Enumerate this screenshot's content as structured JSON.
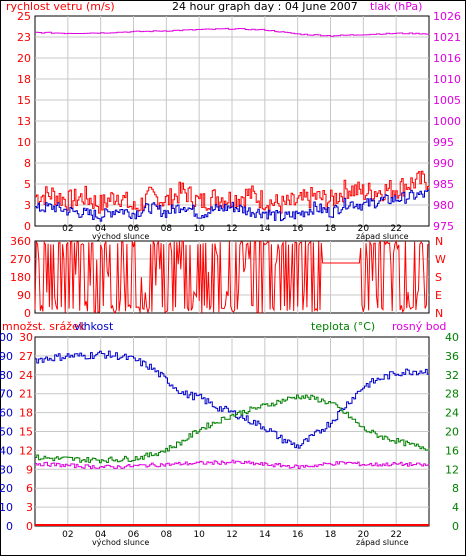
{
  "header": {
    "wind_label": "rychlost vetru (m/s)",
    "title": "24 hour graph day : 04 June 2007",
    "pressure_label": "tlak (hPa)"
  },
  "footer_labels": {
    "sunrise": "východ slunce",
    "sunset": "západ slunce"
  },
  "bottom_header": {
    "rain_label": "množst. srážek",
    "humidity_label": "vlhkost",
    "temp_label": "teplota (°C)",
    "dew_label": "rosný bod"
  },
  "colors": {
    "wind_gust": "#ff0000",
    "wind_avg": "#0000cc",
    "pressure": "#e000e0",
    "direction": "#ff0000",
    "humidity": "#0000cc",
    "temperature": "#008000",
    "dewpoint": "#e000e0",
    "rain": "#ff0000",
    "grid": "#c8c8c8"
  },
  "chart_data": [
    {
      "type": "line",
      "title": "24 hour graph day : 04 June 2007",
      "ylabel": "rychlost vetru (m/s)",
      "y2label": "tlak (hPa)",
      "xlim": [
        0,
        24
      ],
      "ylim": [
        0,
        25
      ],
      "y2lim": [
        975,
        1026
      ],
      "x_ticks": [
        "02",
        "04",
        "06",
        "08",
        "10",
        "12",
        "14",
        "16",
        "18",
        "20",
        "22"
      ],
      "y_ticks": [
        "25",
        "23",
        "20",
        "18",
        "15",
        "13",
        "10",
        "8",
        "5",
        "3",
        "0"
      ],
      "y2_ticks": [
        "1026",
        "1021",
        "1016",
        "1010",
        "1005",
        "1000",
        "995",
        "990",
        "985",
        "980",
        "975"
      ],
      "series": [
        {
          "key": "gust",
          "x": [
            0,
            1,
            2,
            3,
            4,
            5,
            6,
            7,
            8,
            9,
            10,
            11,
            12,
            13,
            14,
            15,
            16,
            17,
            18,
            19,
            20,
            21,
            22,
            23,
            24
          ],
          "values": [
            3.5,
            3.8,
            3.0,
            3.5,
            2.5,
            3.8,
            2.0,
            3.5,
            3.0,
            4.2,
            2.8,
            3.5,
            3.2,
            3.8,
            3.0,
            2.5,
            2.8,
            3.5,
            3.0,
            4.5,
            4.0,
            4.2,
            4.5,
            5.2,
            5.5
          ]
        },
        {
          "key": "avg",
          "x": [
            0,
            1,
            2,
            3,
            4,
            5,
            6,
            7,
            8,
            9,
            10,
            11,
            12,
            13,
            14,
            15,
            16,
            17,
            18,
            19,
            20,
            21,
            22,
            23,
            24
          ],
          "values": [
            2.0,
            2.3,
            1.8,
            1.5,
            1.2,
            2.0,
            1.5,
            2.2,
            1.6,
            2.5,
            1.4,
            2.0,
            2.3,
            1.8,
            1.6,
            1.0,
            1.4,
            2.2,
            1.6,
            2.8,
            2.5,
            3.0,
            3.2,
            3.6,
            3.8
          ]
        },
        {
          "key": "pressure",
          "x": [
            0,
            2,
            4,
            6,
            8,
            10,
            12,
            14,
            16,
            18,
            20,
            22,
            24
          ],
          "values": [
            1022.0,
            1021.8,
            1021.9,
            1022.2,
            1022.4,
            1022.7,
            1022.9,
            1022.6,
            1021.6,
            1021.2,
            1021.5,
            1021.8,
            1021.7
          ]
        }
      ]
    },
    {
      "type": "line",
      "ylabel": "direction",
      "ylim": [
        0,
        360
      ],
      "xlim": [
        0,
        24
      ],
      "y_ticks": [
        "360",
        "270",
        "180",
        "90",
        "0"
      ],
      "y2_ticks": [
        "N",
        "W",
        "S",
        "E",
        "N"
      ],
      "series": [
        {
          "key": "direction",
          "x": [
            0,
            1,
            2,
            3,
            4,
            5,
            6,
            7,
            8,
            9,
            10,
            11,
            12,
            13,
            14,
            15,
            16,
            17,
            18,
            19,
            20,
            21,
            22,
            23,
            24
          ],
          "values": [
            340,
            10,
            350,
            20,
            345,
            5,
            330,
            15,
            355,
            200,
            60,
            320,
            10,
            280,
            40,
            350,
            20,
            250,
            250,
            250,
            340,
            20,
            350,
            10,
            300
          ]
        }
      ]
    },
    {
      "type": "line",
      "ylabel": "množst. srážek / vlhkost",
      "y2label": "teplota (°C)",
      "xlim": [
        0,
        24
      ],
      "ylim": [
        0,
        100
      ],
      "y_ticks_rain": [
        "30",
        "27",
        "24",
        "21",
        "18",
        "15",
        "12",
        "9",
        "6",
        "3",
        "0"
      ],
      "y_ticks_hum": [
        "100",
        "90",
        "80",
        "70",
        "60",
        "50",
        "40",
        "30",
        "20",
        "10",
        "0"
      ],
      "y2_ticks": [
        "40",
        "36",
        "32",
        "28",
        "24",
        "20",
        "16",
        "12",
        "8",
        "4",
        "0"
      ],
      "series": [
        {
          "key": "humidity",
          "x": [
            0,
            1,
            2,
            3,
            4,
            5,
            6,
            7,
            8,
            9,
            10,
            11,
            12,
            13,
            14,
            15,
            16,
            17,
            18,
            19,
            20,
            21,
            22,
            23,
            24
          ],
          "values": [
            88,
            89,
            90,
            90,
            91,
            90,
            88,
            84,
            77,
            70,
            68,
            63,
            60,
            56,
            52,
            46,
            42,
            48,
            55,
            65,
            74,
            78,
            81,
            82,
            82
          ]
        },
        {
          "key": "temperature",
          "x": [
            0,
            1,
            2,
            3,
            4,
            5,
            6,
            7,
            8,
            9,
            10,
            11,
            12,
            13,
            14,
            15,
            16,
            17,
            18,
            19,
            20,
            21,
            22,
            23,
            24
          ],
          "values": [
            14.5,
            14.3,
            14.2,
            14.0,
            14.0,
            14.1,
            14.3,
            15.0,
            16.2,
            18.0,
            20.5,
            22.0,
            23.5,
            24.5,
            25.5,
            26.5,
            27.5,
            27.0,
            26.0,
            23.5,
            20.5,
            19.0,
            18.0,
            17.0,
            16.5
          ]
        },
        {
          "key": "dewpoint",
          "x": [
            0,
            1,
            2,
            3,
            4,
            5,
            6,
            7,
            8,
            9,
            10,
            11,
            12,
            13,
            14,
            15,
            16,
            17,
            18,
            19,
            20,
            21,
            22,
            23,
            24
          ],
          "values": [
            13.2,
            13.0,
            12.8,
            12.6,
            12.5,
            12.5,
            12.7,
            12.9,
            13.0,
            13.2,
            13.3,
            13.4,
            13.5,
            13.3,
            13.0,
            12.8,
            12.5,
            12.8,
            13.2,
            13.4,
            13.0,
            13.0,
            13.1,
            13.0,
            12.8
          ]
        },
        {
          "key": "rain",
          "x": [
            0,
            24
          ],
          "values": [
            0,
            0
          ]
        }
      ]
    }
  ]
}
